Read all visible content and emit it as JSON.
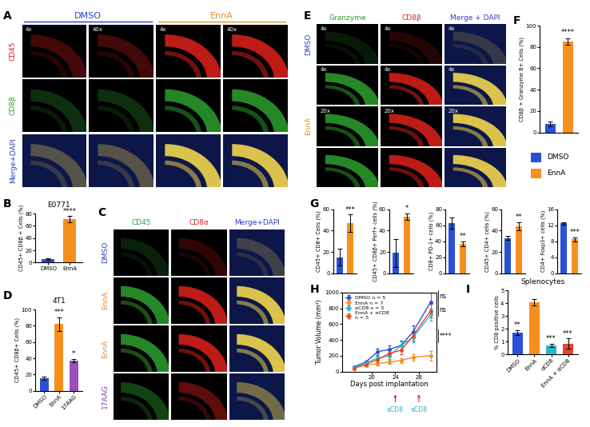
{
  "image_panels": [
    {
      "panel": "A",
      "group_headers": [
        {
          "text": "DMSO",
          "color": "#2b3fc4"
        },
        {
          "text": "EnnA",
          "color": "#f08a24"
        }
      ],
      "row_labels": [
        {
          "text": "CD45",
          "color": "#e0201b"
        },
        {
          "text": "CD8β",
          "color": "#2ca02c"
        },
        {
          "text": "Merge+DAPI",
          "color": "#2b3fc4"
        }
      ],
      "cell_labels": [
        [
          "4x",
          "40x",
          "4x",
          "40x"
        ],
        [
          null,
          null,
          null,
          null
        ],
        [
          null,
          null,
          null,
          null
        ]
      ]
    },
    {
      "panel": "C",
      "column_labels": [
        {
          "text": "CD45",
          "color": "#2ca02c"
        },
        {
          "text": "CD8α",
          "color": "#e0201b"
        },
        {
          "text": "Merge+DAPI",
          "color": "#2b3fc4"
        }
      ],
      "row_labels": [
        {
          "text": "DMSO",
          "color": "#2b3fc4"
        },
        {
          "text": "EnnA",
          "color": "#f08a24"
        },
        {
          "text": "EnnA",
          "color": "#f08a24"
        },
        {
          "text": "17AAG",
          "color": "#7b3fb0"
        }
      ]
    },
    {
      "panel": "E",
      "column_labels": [
        {
          "text": "Granzyme",
          "color": "#2ca02c"
        },
        {
          "text": "CD8β",
          "color": "#e0201b"
        },
        {
          "text": "Merge + DAPI",
          "color": "#2b3fc4"
        }
      ],
      "row_labels": [
        {
          "text": "DMSO",
          "color": "#2b3fc4"
        },
        {
          "text": "EnnA",
          "color": "#f08a24"
        },
        null,
        null
      ],
      "cell_labels": [
        [
          "4x",
          "4x",
          "4x"
        ],
        [
          "4x",
          "4x",
          "4x"
        ],
        [
          "20x",
          "20x",
          "20x"
        ],
        [
          null,
          null,
          null
        ]
      ]
    }
  ],
  "color_key": [
    {
      "text": "DMSO",
      "color": "#2b50d8"
    },
    {
      "text": "EnnA",
      "color": "#f5901e"
    }
  ],
  "chart_data": [
    {
      "panel": "B",
      "type": "bar",
      "title": "E0771",
      "categories": [
        "DMSO",
        "EnnA"
      ],
      "values": [
        6,
        71
      ],
      "errors": [
        1.5,
        5
      ],
      "colors": [
        "#2b50d8",
        "#f5901e"
      ],
      "ylabel": "CD45+ CD8β + Cells (%)",
      "ylim": [
        0,
        80
      ],
      "yticks": [
        0,
        20,
        40,
        60,
        80
      ],
      "annotations": [
        null,
        "****"
      ]
    },
    {
      "panel": "D",
      "type": "bar",
      "title": "4T1",
      "categories": [
        "DMSO",
        "EnnA",
        "17AAG"
      ],
      "values": [
        15,
        82,
        37
      ],
      "errors": [
        2,
        8,
        2
      ],
      "colors": [
        "#2b50d8",
        "#f5901e",
        "#9b4fc0"
      ],
      "ylabel": "CD45+ CD8β+ Cells (%)",
      "ylim": [
        0,
        100
      ],
      "yticks": [
        0,
        20,
        40,
        60,
        80,
        100
      ],
      "annotations": [
        null,
        "***",
        "*"
      ]
    },
    {
      "panel": "F",
      "type": "bar",
      "categories": [
        "DMSO",
        "EnnA"
      ],
      "values": [
        8,
        85
      ],
      "errors": [
        2,
        3
      ],
      "tick_labels": "y",
      "colors": [
        "#2b50d8",
        "#f5901e"
      ],
      "ylabel": "CD8β + Granzyme B+ Cells (%)",
      "ylim": [
        0,
        100
      ],
      "yticks": [
        0,
        20,
        40,
        60,
        80,
        100
      ],
      "annotations": [
        null,
        "****"
      ]
    },
    {
      "panel": "G",
      "type": "bar",
      "categories": [
        "DMSO",
        "EnnA"
      ],
      "values": [
        15,
        47
      ],
      "errors": [
        8,
        8
      ],
      "tick_labels": "y",
      "colors": [
        "#2b50d8",
        "#f5901e"
      ],
      "ylabel": "CD45+ CD8+ Cells (%)",
      "ylim": [
        0,
        60
      ],
      "yticks": [
        0,
        20,
        40,
        60
      ],
      "annotations": [
        null,
        "***"
      ]
    },
    {
      "type": "bar",
      "categories": [
        "DMSO",
        "EnnA"
      ],
      "values": [
        19,
        53
      ],
      "errors": [
        13,
        3
      ],
      "tick_labels": "y",
      "colors": [
        "#2b50d8",
        "#f5901e"
      ],
      "ylabel": "CD45+ CD8β+ Perf+ cells (%)",
      "ylim": [
        0,
        60
      ],
      "yticks": [
        0,
        20,
        40,
        60
      ],
      "annotations": [
        null,
        "*"
      ]
    },
    {
      "type": "bar",
      "categories": [
        "DMSO",
        "EnnA"
      ],
      "values": [
        63,
        37
      ],
      "errors": [
        7,
        3
      ],
      "tick_labels": "y",
      "colors": [
        "#2b50d8",
        "#f5901e"
      ],
      "ylabel": "CD8+ PD-1+ cells (%)",
      "ylim": [
        0,
        80
      ],
      "yticks": [
        0,
        20,
        40,
        60,
        80
      ],
      "annotations": [
        null,
        "**"
      ]
    },
    {
      "type": "bar",
      "categories": [
        "DMSO",
        "EnnA"
      ],
      "values": [
        33,
        44
      ],
      "errors": [
        2,
        4
      ],
      "tick_labels": "y",
      "colors": [
        "#2b50d8",
        "#f5901e"
      ],
      "ylabel": "CD45+ CD4+ cells (%)",
      "ylim": [
        0,
        60
      ],
      "yticks": [
        0,
        20,
        40,
        60
      ],
      "annotations": [
        null,
        "**"
      ]
    },
    {
      "type": "bar",
      "categories": [
        "DMSO",
        "EnnA"
      ],
      "values": [
        12.5,
        8.5
      ],
      "errors": [
        0.3,
        0.5
      ],
      "tick_labels": "y",
      "colors": [
        "#2b50d8",
        "#f5901e"
      ],
      "ylabel": "CD4+ Foxp3+ cells (%)",
      "ylim": [
        0,
        16
      ],
      "yticks": [
        0,
        4,
        8,
        12,
        16
      ],
      "annotations": [
        null,
        "***"
      ]
    },
    {
      "panel": "H",
      "type": "line",
      "x": [
        17,
        19,
        21,
        23,
        25,
        27,
        30
      ],
      "series": [
        {
          "name": "DMSO n = 5",
          "color": "#2b50d8",
          "values": [
            60,
            120,
            250,
            280,
            330,
            500,
            880
          ],
          "errors": [
            10,
            20,
            40,
            50,
            60,
            80,
            130
          ]
        },
        {
          "name": "EnnA n = 7",
          "color": "#f5901e",
          "values": [
            50,
            80,
            100,
            120,
            140,
            180,
            200
          ],
          "errors": [
            10,
            15,
            20,
            25,
            30,
            40,
            60
          ]
        },
        {
          "name": "αCD8 n = 5",
          "color": "#2ab7ce",
          "values": [
            50,
            110,
            170,
            200,
            330,
            430,
            720
          ],
          "errors": [
            10,
            20,
            30,
            40,
            50,
            60,
            80
          ]
        },
        {
          "name": "EnnA + αCD8\nn = 5",
          "color": "#e8442b",
          "values": [
            40,
            90,
            150,
            230,
            270,
            450,
            770
          ],
          "errors": [
            10,
            20,
            30,
            40,
            50,
            60,
            90
          ]
        }
      ],
      "marker": "o",
      "legend": "upper left",
      "xlabel": "Days post implantation",
      "ylabel": "Tumor Volume (mm³)",
      "xlim": [
        15,
        31
      ],
      "xticks": [
        20,
        24,
        28
      ],
      "ylim": [
        0,
        1000
      ],
      "yticks": [
        0,
        200,
        400,
        600,
        800,
        1000
      ],
      "annotations": [
        {
          "text": "αCD8",
          "x": 24,
          "color": "#2ab7ce"
        },
        {
          "text": "αCD8",
          "x": 28,
          "color": "#2ab7ce"
        }
      ],
      "comparisons": [
        "ns",
        "ns",
        "****"
      ]
    },
    {
      "panel": "I",
      "type": "bar",
      "title": "Splenocytes",
      "categories": [
        "DMSO",
        "EnnA",
        "αCD8",
        "EnnA + αCD8"
      ],
      "values": [
        1.7,
        4.1,
        0.7,
        0.85
      ],
      "errors": [
        0.2,
        0.25,
        0.15,
        0.4
      ],
      "colors": [
        "#2b50d8",
        "#f5901e",
        "#2ab7ce",
        "#e8442b"
      ],
      "ylabel": "% CD8 positive cells",
      "ylim": [
        0,
        5
      ],
      "yticks": [
        0,
        1,
        2,
        3,
        4,
        5
      ],
      "annotations": [
        "**",
        null,
        "***",
        "***"
      ]
    }
  ]
}
